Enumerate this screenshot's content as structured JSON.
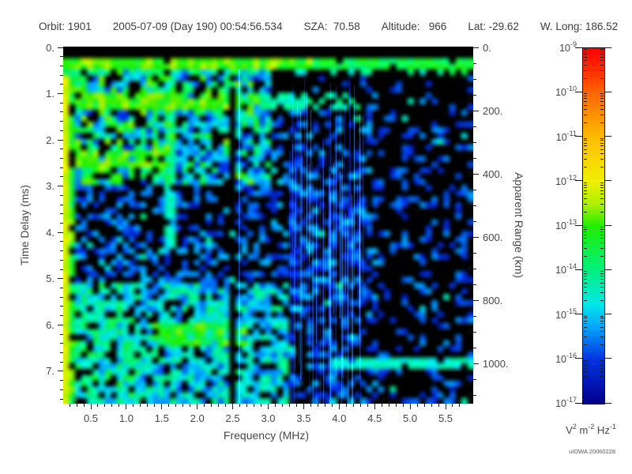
{
  "header": {
    "segments": [
      "Orbit: 1901",
      "2005-07-09 (Day 190) 00:54:56.534",
      "SZA:  70.58",
      "Altitude:   966",
      "Lat: -29.62",
      "W. Long: 186.52"
    ]
  },
  "chart_data": {
    "type": "heatmap",
    "description": "MARSIS-style radar ionogram spectrogram: received spectral density vs frequency and time delay, black background with blue-to-green blobs on a coarse cell grid",
    "xlabel": "Frequency (MHz)",
    "ylabel_left": "Time Delay (ms)",
    "ylabel_right": "Apparent Range (km)",
    "x_axis": {
      "range": [
        0.11,
        5.89
      ],
      "major_ticks": [
        0.5,
        1.0,
        1.5,
        2.0,
        2.5,
        3.0,
        3.5,
        4.0,
        4.5,
        5.0,
        5.5
      ],
      "tick_labels": [
        "0.5",
        "1.0",
        "1.5",
        "2.0",
        "2.5",
        "3.0",
        "3.5",
        "4.0",
        "4.5",
        "5.0",
        "5.5"
      ],
      "minor_step": 0.1
    },
    "y_axis_left": {
      "range": [
        0,
        7.72
      ],
      "major_ticks": [
        0,
        1,
        2,
        3,
        4,
        5,
        6,
        7
      ],
      "tick_labels": [
        "0.",
        "1.",
        "2.",
        "3.",
        "4.",
        "5.",
        "6.",
        "7."
      ],
      "minor_step": 0.2
    },
    "y_axis_right": {
      "range": [
        0,
        1127
      ],
      "major_ticks": [
        0,
        200,
        400,
        600,
        800,
        1000
      ],
      "tick_labels": [
        "0.",
        "200.",
        "400.",
        "600.",
        "800.",
        "1000."
      ],
      "minor_step": 50
    },
    "colorbar": {
      "scale": "log",
      "tick_exponents": [
        -9,
        -10,
        -11,
        -12,
        -13,
        -14,
        -15,
        -16,
        -17
      ],
      "base_label": "10",
      "unit_parts": [
        [
          "V",
          "2"
        ],
        [
          " m",
          "-2"
        ],
        [
          " Hz",
          "-1"
        ]
      ],
      "gradient_stops": [
        [
          0,
          "#ff0000"
        ],
        [
          0.07,
          "#ff3300"
        ],
        [
          0.125,
          "#ff6600"
        ],
        [
          0.25,
          "#ffbb00"
        ],
        [
          0.375,
          "#f0f000"
        ],
        [
          0.44,
          "#aaf000"
        ],
        [
          0.5,
          "#22ee00"
        ],
        [
          0.625,
          "#00f080"
        ],
        [
          0.72,
          "#00e8e8"
        ],
        [
          0.78,
          "#00aaff"
        ],
        [
          0.875,
          "#0033e0"
        ],
        [
          0.95,
          "#0014b0"
        ],
        [
          1,
          "#000085"
        ]
      ]
    },
    "credit": "uIOWA 20060228",
    "features": {
      "top_black_strip_delay_max": 0.27,
      "surface_band": {
        "delay": [
          0.27,
          0.5
        ],
        "green_freq_max": 3.6
      },
      "left_edge": {
        "freq_max": 0.19
      },
      "left_col2": {
        "freq_max": 0.3,
        "density": 0.85
      },
      "upper_left_block": {
        "freq_max": 3.05,
        "delay_max": 2.95,
        "density": 0.62
      },
      "band_1ms": {
        "delay": [
          0.95,
          1.3
        ],
        "freq_max": 4.3
      },
      "band_23": {
        "delay": [
          2.25,
          2.6
        ],
        "freq_max": 1.5
      },
      "cyan_stripe": {
        "freq": [
          1.52,
          1.7
        ],
        "delay_max": 4.3
      },
      "gap_column": {
        "freq": [
          2.44,
          2.56
        ]
      },
      "thin_line_freq": 2.58,
      "streaks": {
        "freq": [
          3.3,
          4.35
        ],
        "count": 95
      },
      "bottom_left": {
        "freq_max": 3.3,
        "delay_min": 5.05,
        "density": 0.8
      },
      "green_ridge": {
        "freq": [
          1.4,
          2.7
        ],
        "delay": [
          5.95,
          6.4
        ]
      },
      "range_band_1000km": {
        "freq_min": 3.85,
        "delay": [
          6.68,
          6.98
        ]
      },
      "noise": {
        "base_density": 0.42,
        "right_freq_min": 4.55,
        "right_density": 0.3,
        "upper_right": {
          "freq_min": 3.0,
          "delay_max": 1.35,
          "density": 0.13
        }
      }
    },
    "render": {
      "seed": 20060228,
      "grid_cols": 69,
      "grid_rows": 62
    }
  }
}
